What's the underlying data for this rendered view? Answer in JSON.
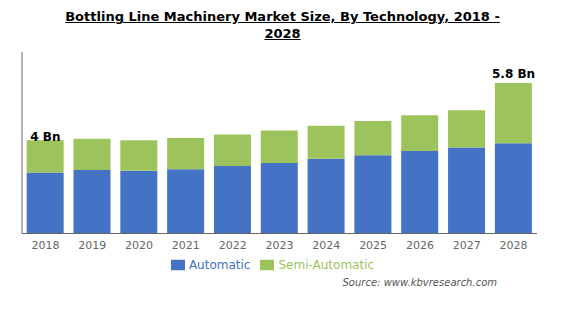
{
  "chart_data": {
    "type": "bar",
    "title": "Bottling Line Machinery Market Size, By Technology, 2018 -\n2028",
    "categories": [
      "2018",
      "2019",
      "2020",
      "2021",
      "2022",
      "2023",
      "2024",
      "2025",
      "2026",
      "2027",
      "2028"
    ],
    "series": [
      {
        "name": "Automatic",
        "color": "#4472C4",
        "values": [
          2.35,
          2.45,
          2.42,
          2.48,
          2.6,
          2.72,
          2.88,
          3.02,
          3.18,
          3.32,
          3.48
        ]
      },
      {
        "name": "Semi-Automatic",
        "color": "#9DC45C",
        "values": [
          1.25,
          1.2,
          1.18,
          1.2,
          1.22,
          1.25,
          1.28,
          1.32,
          1.38,
          1.43,
          2.32
        ]
      }
    ],
    "stacked": true,
    "ylim": [
      0,
      7.0
    ],
    "tick_labels": "x",
    "grid": false,
    "legend": "bottom",
    "annotations": [
      {
        "text": "4 Bn",
        "x": "2018",
        "y": 3.72
      },
      {
        "text": "5.8 Bn",
        "x": "2028",
        "y": 6.15
      }
    ],
    "source": "Source: www.kbvresearch.com"
  }
}
